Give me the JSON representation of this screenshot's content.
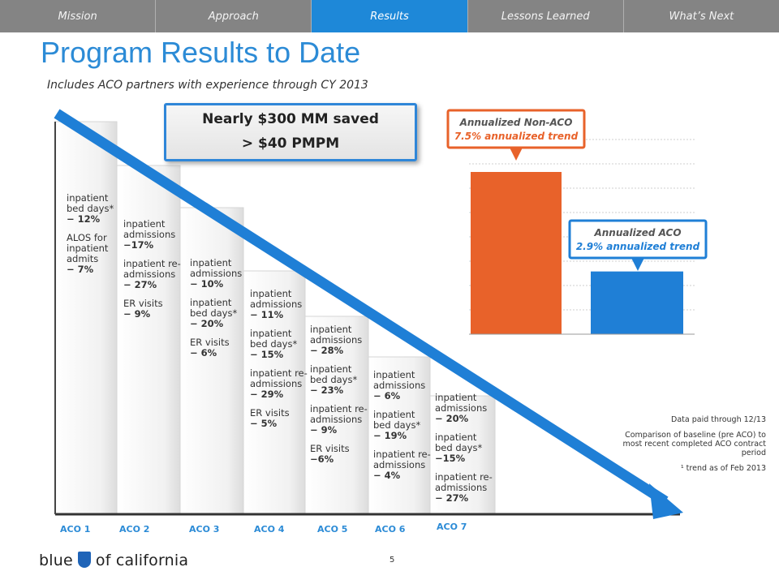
{
  "nav": {
    "tabs": [
      {
        "label": "Mission",
        "active": false
      },
      {
        "label": "Approach",
        "active": false
      },
      {
        "label": "Results",
        "active": true
      },
      {
        "label": "Lessons Learned",
        "active": false
      },
      {
        "label": "What’s Next",
        "active": false
      }
    ]
  },
  "title": "Program Results to Date",
  "subtitle": "Includes ACO partners with experience through CY 2013",
  "savings": {
    "line1": "Nearly $300 MM saved",
    "line2": "> $40 PMPM"
  },
  "acos": [
    {
      "label": "ACO 1",
      "metrics": [
        [
          "inpatient",
          "bed days*",
          "− 12%"
        ],
        [
          "ALOS for",
          "inpatient",
          "admits",
          "− 7%"
        ]
      ]
    },
    {
      "label": "ACO 2",
      "metrics": [
        [
          "inpatient",
          "admissions",
          "−17%"
        ],
        [
          "inpatient re-",
          "admissions",
          "− 27%"
        ],
        [
          "ER visits",
          "− 9%"
        ]
      ]
    },
    {
      "label": "ACO 3",
      "metrics": [
        [
          "inpatient",
          "admissions",
          "− 10%"
        ],
        [
          "inpatient",
          "bed days*",
          "− 20%"
        ],
        [
          "ER visits",
          "− 6%"
        ]
      ]
    },
    {
      "label": "ACO 4",
      "metrics": [
        [
          "inpatient",
          "admissions",
          "− 11%"
        ],
        [
          "inpatient",
          "bed days*",
          "− 15%"
        ],
        [
          "inpatient re-",
          "admissions",
          "− 29%"
        ],
        [
          "ER visits",
          "− 5%"
        ]
      ]
    },
    {
      "label": "ACO 5",
      "metrics": [
        [
          "inpatient",
          "admissions",
          "− 28%"
        ],
        [
          "inpatient",
          "bed days*",
          "− 23%"
        ],
        [
          "inpatient re-",
          "admissions",
          "− 9%"
        ],
        [
          "ER visits",
          "−6%"
        ]
      ]
    },
    {
      "label": "ACO 6",
      "metrics": [
        [
          "inpatient",
          "admissions",
          "− 6%"
        ],
        [
          "inpatient",
          "bed days*",
          "− 19%"
        ],
        [
          "inpatient re-",
          "admissions",
          "− 4%"
        ]
      ]
    },
    {
      "label": "ACO 7",
      "metrics": [
        [
          "inpatient",
          "admissions",
          "− 20%"
        ],
        [
          "inpatient",
          "bed days*",
          "−15%"
        ],
        [
          "inpatient re-",
          "admissions",
          "− 27%"
        ]
      ]
    }
  ],
  "chart_data": {
    "type": "bar",
    "categories": [
      "Annualized Non-ACO",
      "Annualized ACO"
    ],
    "values": [
      7.5,
      2.9
    ],
    "callouts": [
      {
        "title": "Annualized Non-ACO",
        "subtitle": "7.5% annualized trend",
        "color": "#e8622a"
      },
      {
        "title": "Annualized ACO",
        "subtitle": "2.9% annualized trend",
        "color": "#1f7fd6"
      }
    ],
    "ylim": [
      0,
      9
    ],
    "grid": true
  },
  "notes": {
    "n1": "Data paid through 12/13",
    "n2": "Comparison of baseline (pre ACO) to most recent completed ACO contract period",
    "n3": "¹ trend as of Feb 2013"
  },
  "footer": {
    "brand_left": "blue",
    "brand_right": "of california",
    "page": "5"
  },
  "colors": {
    "accent": "#2c8bd6",
    "nav_bg": "#848484",
    "active_tab": "#1e88d8",
    "orange": "#e8622a",
    "blue": "#1f7fd6"
  }
}
